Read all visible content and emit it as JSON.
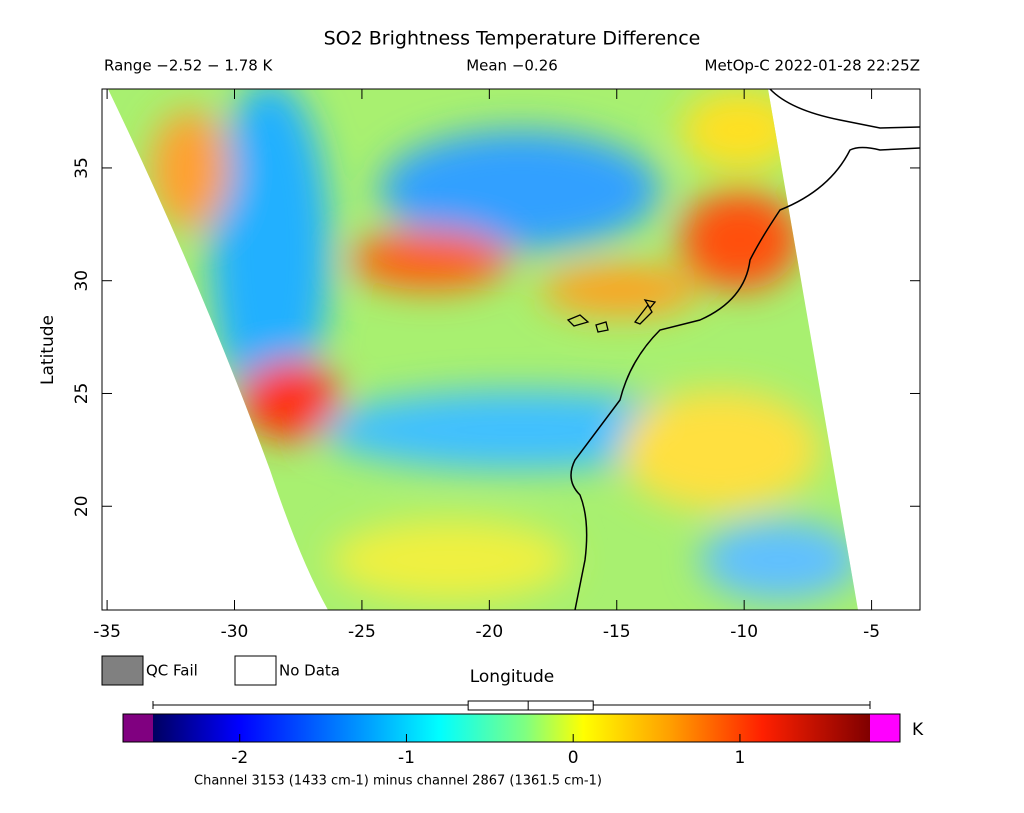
{
  "chart_data": {
    "type": "map",
    "title": "SO2 Brightness Temperature Difference",
    "subtitle_left": "Range −2.52 − 1.78 K",
    "subtitle_center": "Mean −0.26",
    "subtitle_right": "MetOp-C 2022-01-28 22:25Z",
    "xlabel": "Longitude",
    "ylabel": "Latitude",
    "xlim": [
      -35.2,
      -3.1
    ],
    "ylim": [
      15.4,
      38.5
    ],
    "xticks": [
      -35,
      -30,
      -25,
      -20,
      -15,
      -10,
      -5
    ],
    "yticks": [
      20,
      25,
      30,
      35
    ],
    "legend": [
      "QC Fail",
      "No Data"
    ],
    "colorbar": {
      "lim": [
        -2.52,
        1.78
      ],
      "ticks": [
        -2,
        -1,
        0,
        1
      ],
      "unit": "K",
      "distribution": {
        "min": -2.52,
        "q1": -0.63,
        "median": -0.27,
        "q3": 0.12,
        "max": 1.78
      }
    },
    "footnote": "Channel 3153 (1433 cm-1) minus channel 2867 (1361.5 cm-1)"
  }
}
